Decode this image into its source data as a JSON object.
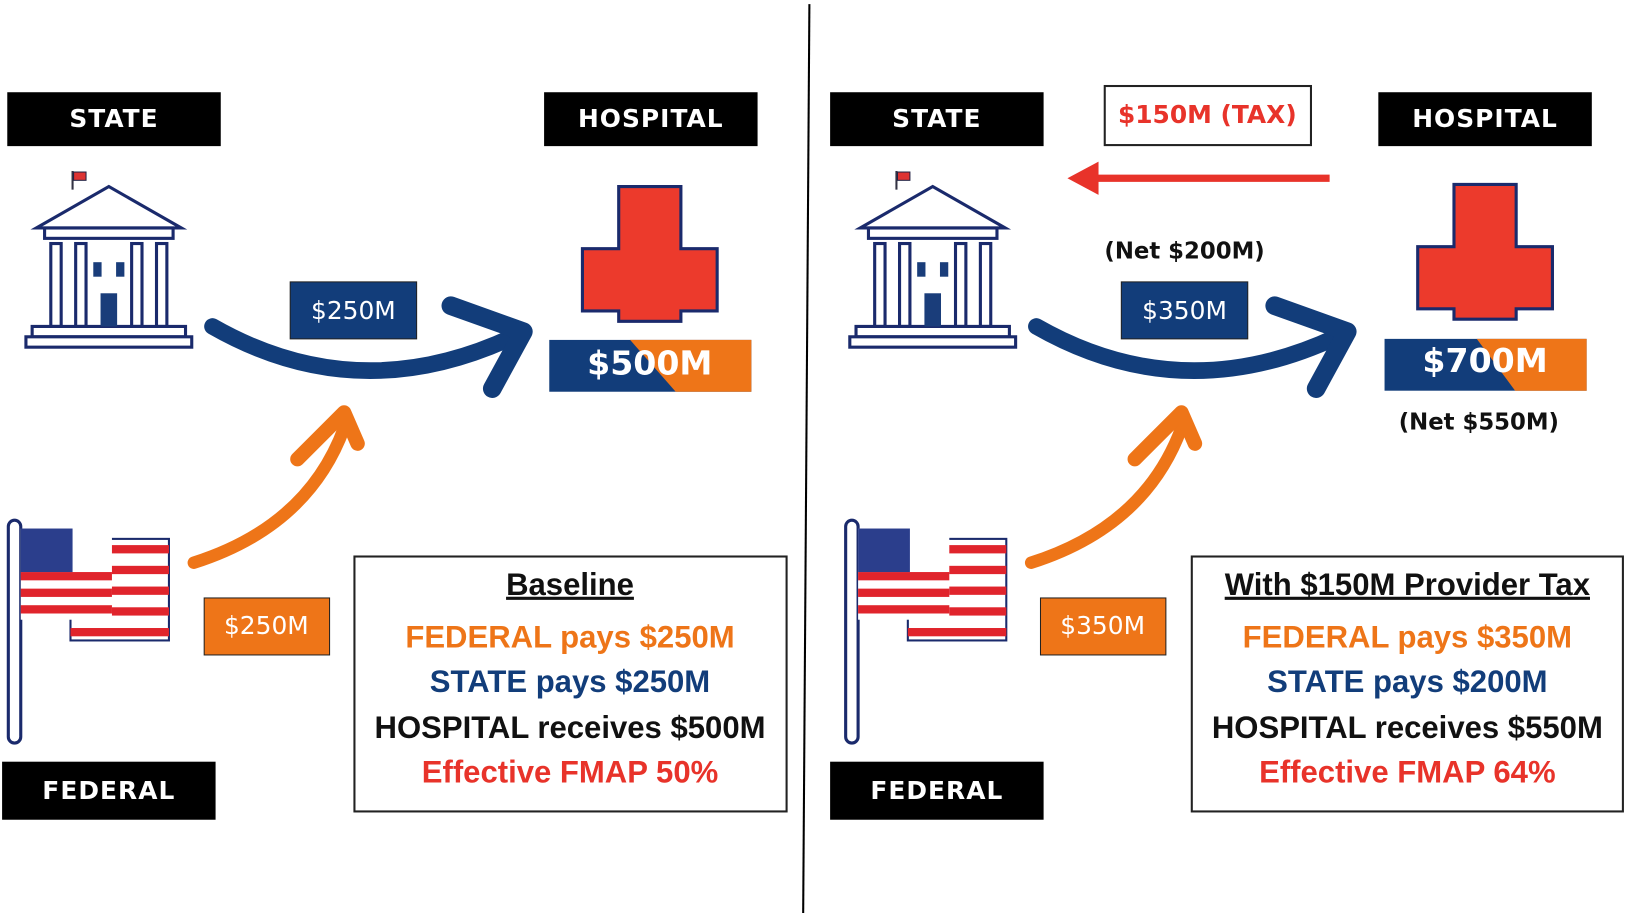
{
  "panels": [
    {
      "state_label": "STATE",
      "hospital_label": "HOSPITAL",
      "federal_label": "FEDERAL",
      "state_amount": "$250M",
      "federal_amount": "$250M",
      "hospital_amount": "$500M",
      "summary": {
        "title": "Baseline",
        "lines": [
          "FEDERAL pays $250M",
          "STATE pays $250M",
          "HOSPITAL receives $500M",
          "Effective FMAP 50%"
        ]
      }
    },
    {
      "state_label": "STATE",
      "hospital_label": "HOSPITAL",
      "federal_label": "FEDERAL",
      "tax_label": "$150M (TAX)",
      "state_net": "(Net $200M)",
      "state_amount": "$350M",
      "federal_amount": "$350M",
      "hospital_amount": "$700M",
      "hospital_net": "(Net $550M)",
      "summary": {
        "title": "With $150M Provider Tax",
        "lines": [
          "FEDERAL pays $350M",
          "STATE pays $200M",
          "HOSPITAL receives $550M",
          "Effective FMAP 64%"
        ]
      }
    }
  ]
}
